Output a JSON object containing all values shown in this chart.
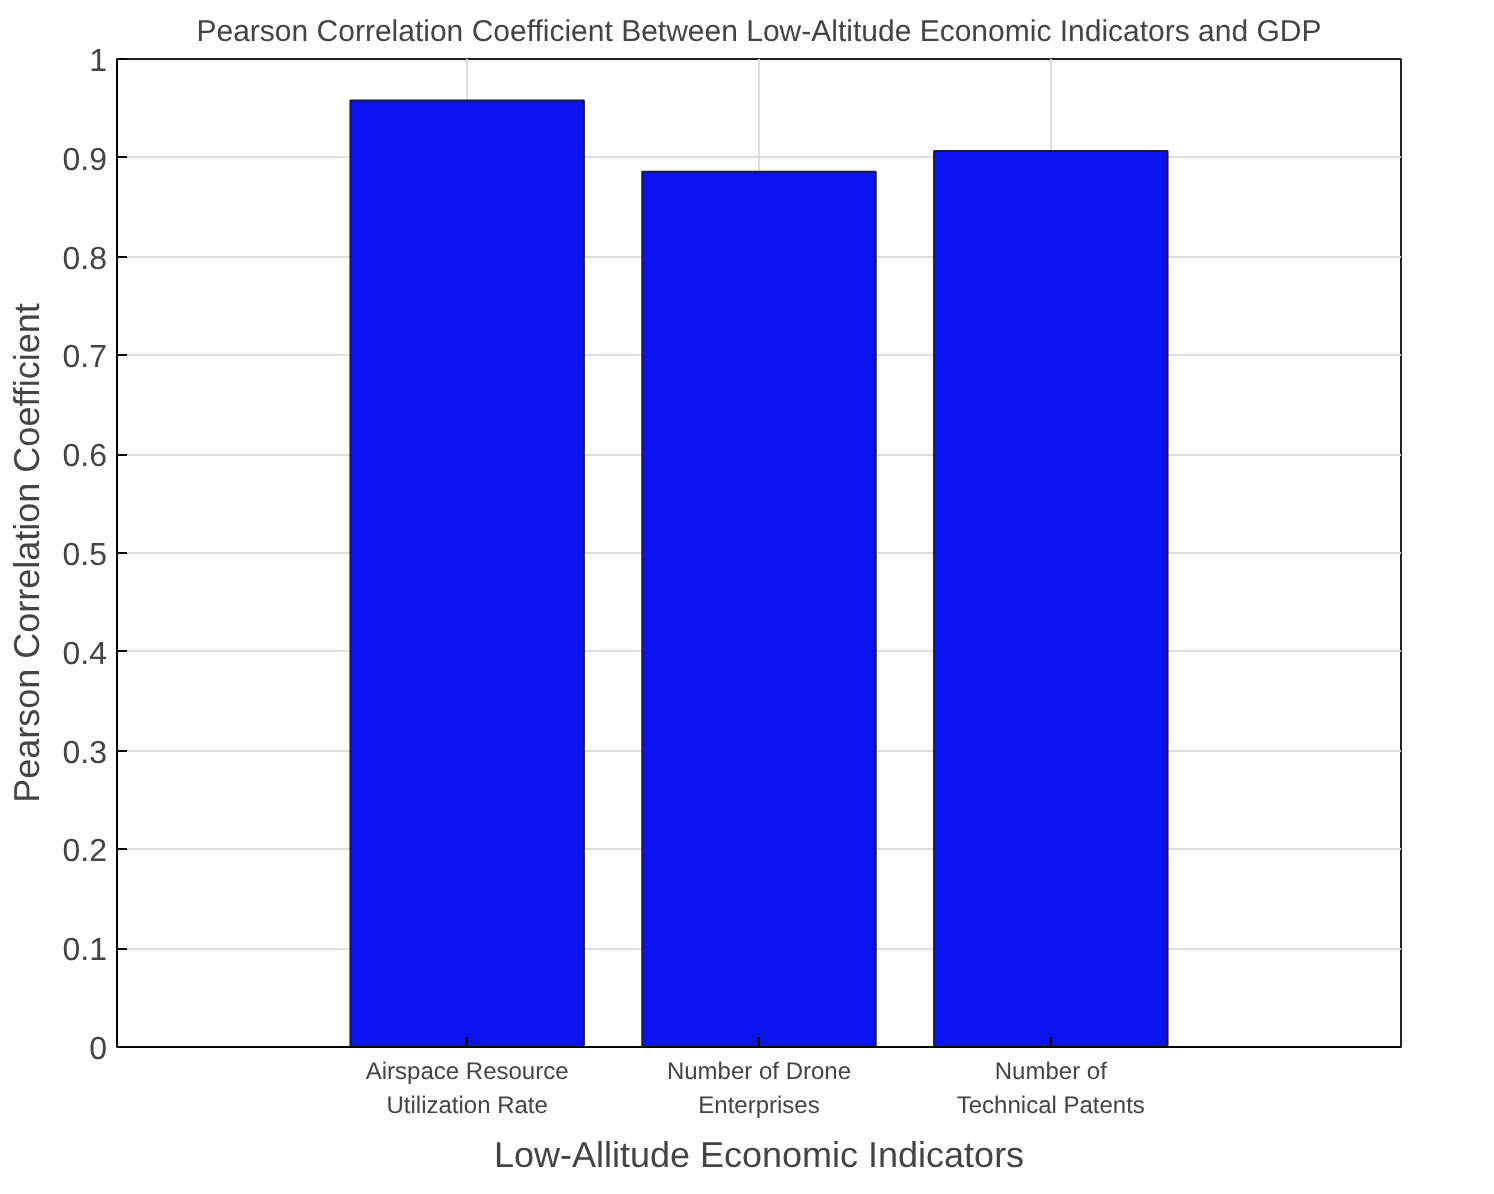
{
  "chart_data": {
    "type": "bar",
    "title": "Pearson Correlation Coefficient Between Low-Altitude Economic Indicators and GDP",
    "xlabel": "Low-Allitude Economic Indicators",
    "ylabel": "Pearson Correlation Coefficient",
    "categories": [
      "Airspace Resource\nUtilization Rate",
      "Number of Drone\nEnterprises",
      "Number of\nTechnical Patents"
    ],
    "values": [
      0.958,
      0.886,
      0.907
    ],
    "color": "#0a14f0",
    "ylim": [
      0,
      1
    ],
    "yticks": [
      0,
      0.1,
      0.2,
      0.3,
      0.4,
      0.5,
      0.6,
      0.7,
      0.8,
      0.9,
      1
    ],
    "grid": true
  }
}
